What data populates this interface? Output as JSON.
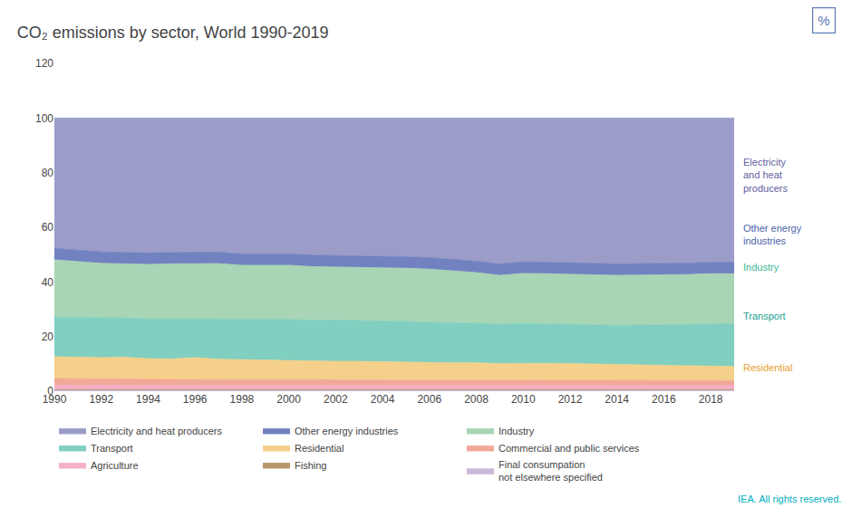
{
  "chart_data": {
    "type": "area",
    "stacked": true,
    "title": "CO₂ emissions by sector, World 1990-2019",
    "x": [
      1990,
      1991,
      1992,
      1993,
      1994,
      1995,
      1996,
      1997,
      1998,
      1999,
      2000,
      2001,
      2002,
      2003,
      2004,
      2005,
      2006,
      2007,
      2008,
      2009,
      2010,
      2011,
      2012,
      2013,
      2014,
      2015,
      2016,
      2017,
      2018,
      2019
    ],
    "series": [
      {
        "name": "Final consumpation\nnot elsewhere specified",
        "color": "#c9b8d8",
        "values": [
          0.4,
          0.4,
          0.4,
          0.4,
          0.4,
          0.4,
          0.4,
          0.4,
          0.4,
          0.4,
          0.4,
          0.4,
          0.4,
          0.4,
          0.4,
          0.4,
          0.4,
          0.4,
          0.4,
          0.4,
          0.4,
          0.4,
          0.4,
          0.4,
          0.4,
          0.4,
          0.4,
          0.4,
          0.4,
          0.4
        ]
      },
      {
        "name": "Fishing",
        "color": "#b8956a",
        "values": [
          0.2,
          0.2,
          0.2,
          0.2,
          0.2,
          0.2,
          0.2,
          0.2,
          0.2,
          0.2,
          0.2,
          0.2,
          0.2,
          0.2,
          0.2,
          0.2,
          0.2,
          0.2,
          0.2,
          0.2,
          0.2,
          0.2,
          0.2,
          0.2,
          0.2,
          0.2,
          0.2,
          0.2,
          0.2,
          0.2
        ]
      },
      {
        "name": "Agriculture",
        "color": "#f5b0c8",
        "values": [
          1.5,
          1.5,
          1.5,
          1.5,
          1.4,
          1.4,
          1.4,
          1.4,
          1.4,
          1.4,
          1.4,
          1.4,
          1.4,
          1.4,
          1.4,
          1.4,
          1.4,
          1.4,
          1.4,
          1.4,
          1.4,
          1.4,
          1.4,
          1.4,
          1.4,
          1.4,
          1.4,
          1.4,
          1.4,
          1.4
        ]
      },
      {
        "name": "Commercial and public services",
        "color": "#f2a898",
        "values": [
          2.5,
          2.5,
          2.4,
          2.4,
          2.3,
          2.3,
          2.4,
          2.3,
          2.3,
          2.3,
          2.2,
          2.2,
          2.1,
          2.1,
          2.1,
          2.1,
          2.0,
          2.0,
          2.0,
          2.0,
          2.0,
          2.0,
          2.0,
          1.9,
          1.9,
          1.9,
          1.9,
          1.9,
          1.9,
          1.8
        ]
      },
      {
        "name": "Residential",
        "color": "#f5d08a",
        "values": [
          8.0,
          7.8,
          7.8,
          7.9,
          7.6,
          7.5,
          7.9,
          7.4,
          7.2,
          7.1,
          6.9,
          6.9,
          6.8,
          6.8,
          6.6,
          6.6,
          6.5,
          6.4,
          6.4,
          6.1,
          6.2,
          6.2,
          6.1,
          6.0,
          5.8,
          5.6,
          5.5,
          5.4,
          5.3,
          5.2
        ]
      },
      {
        "name": "Transport",
        "color": "#80cfc0",
        "values": [
          14.5,
          14.6,
          14.5,
          14.4,
          14.5,
          14.6,
          14.3,
          14.7,
          14.8,
          14.9,
          15.0,
          15.0,
          15.1,
          15.0,
          14.9,
          14.8,
          14.7,
          14.6,
          14.5,
          14.5,
          14.6,
          14.5,
          14.5,
          14.4,
          14.4,
          14.6,
          14.9,
          15.1,
          15.5,
          15.8
        ]
      },
      {
        "name": "Industry",
        "color": "#a8d5b5",
        "values": [
          21.0,
          20.5,
          20.0,
          19.8,
          20.0,
          20.2,
          20.0,
          20.3,
          19.8,
          19.8,
          20.0,
          19.5,
          19.5,
          19.5,
          19.5,
          19.5,
          19.5,
          19.0,
          18.5,
          17.8,
          18.3,
          18.3,
          18.3,
          18.3,
          18.3,
          18.3,
          18.3,
          18.3,
          18.3,
          18.2
        ]
      },
      {
        "name": "Other energy industries",
        "color": "#7282c0",
        "values": [
          4.2,
          4.2,
          4.2,
          4.2,
          4.2,
          4.2,
          4.2,
          4.2,
          4.2,
          4.2,
          4.2,
          4.2,
          4.2,
          4.2,
          4.2,
          4.2,
          4.2,
          4.2,
          4.2,
          4.2,
          4.2,
          4.2,
          4.2,
          4.2,
          4.2,
          4.2,
          4.2,
          4.2,
          4.2,
          4.2
        ]
      },
      {
        "name": "Electricity and heat producers",
        "color": "#9b9dc8",
        "values": [
          47.7,
          48.3,
          49.0,
          49.2,
          49.4,
          49.2,
          49.2,
          49.3,
          49.7,
          49.8,
          49.7,
          50.2,
          50.3,
          50.6,
          50.9,
          51.0,
          51.3,
          52.0,
          52.6,
          53.6,
          52.9,
          53.0,
          52.9,
          53.2,
          53.4,
          53.5,
          53.2,
          53.2,
          53.0,
          52.8
        ]
      }
    ],
    "xlim": [
      1990,
      2019
    ],
    "xticks": [
      1990,
      1992,
      1994,
      1996,
      1998,
      2000,
      2002,
      2004,
      2006,
      2008,
      2010,
      2012,
      2014,
      2016,
      2018
    ],
    "ylim": [
      0,
      120
    ],
    "yticks": [
      0,
      20,
      40,
      60,
      80,
      100,
      120
    ],
    "grid": true,
    "legend": "bottom",
    "annotations": [
      {
        "text": "Electricity\nand heat\nproducers",
        "color": "#6060a0"
      },
      {
        "text": "Other energy\nindustries",
        "color": "#4a5fa8"
      },
      {
        "text": "Industry",
        "color": "#3ab89a"
      },
      {
        "text": "Transport",
        "color": "#20a090"
      },
      {
        "text": "Residential",
        "color": "#e8a030"
      },
      {
        "text": "%",
        "color": "#5a7ab5"
      },
      {
        "text": "IEA. All rights reserved.",
        "color": "#00b0c0"
      }
    ]
  }
}
